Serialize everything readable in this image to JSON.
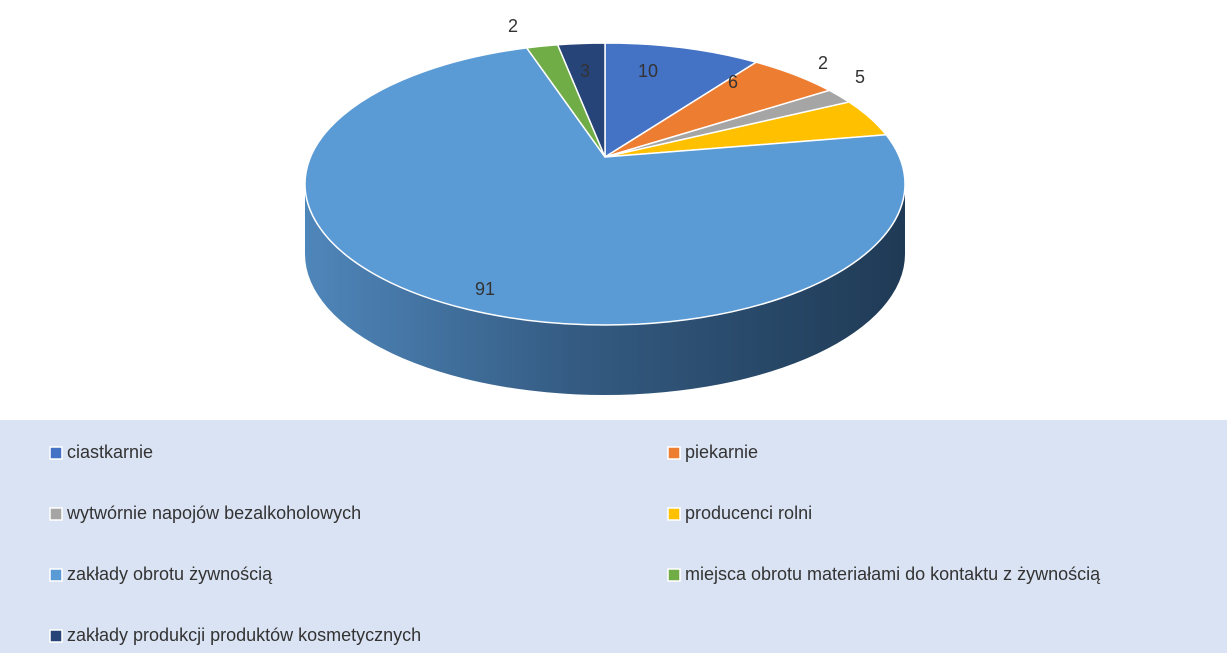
{
  "chart_data": {
    "type": "pie",
    "categories": [
      "ciastkarnie",
      "piekarnie",
      "wytwórnie napojów bezalkoholowych",
      "producenci rolni",
      "zakłady obrotu żywnością",
      "miejsca obrotu materiałami do kontaktu z żywnością",
      "zakłady produkcji produktów kosmetycznych"
    ],
    "values": [
      10,
      6,
      2,
      5,
      91,
      2,
      3
    ],
    "colors": [
      "#4472c4",
      "#ed7d31",
      "#a5a5a5",
      "#ffc000",
      "#5b9bd5",
      "#70ad47",
      "#264478"
    ],
    "legend": "bottom"
  }
}
